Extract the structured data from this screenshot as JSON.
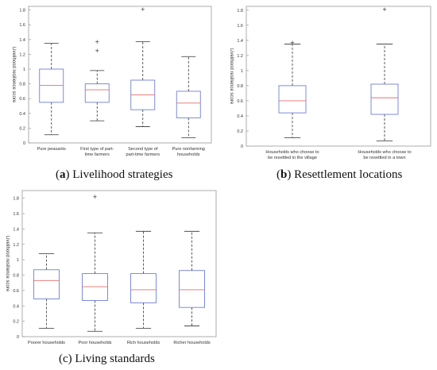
{
  "colors": {
    "box": "#6f7fd6",
    "median": "#e46f6f",
    "whisker": "#333333",
    "outlier": "#555555",
    "frame": "#999999"
  },
  "captions": [
    {
      "letter": "a",
      "text": "Livelihood strategies"
    },
    {
      "letter": "b",
      "text": "Resettlement locations"
    },
    {
      "letter": "c",
      "text": "Living standards"
    }
  ],
  "chart_data": [
    {
      "type": "box",
      "ylabel": "Livelihood resilience score",
      "ylim": [
        0,
        1.85
      ],
      "yticks": [
        "0",
        "0.2",
        "0.4",
        "0.6",
        "0.8",
        "1",
        "1.2",
        "1.4",
        "1.6",
        "1.8"
      ],
      "categories": [
        [
          "Pure peasants"
        ],
        [
          "First type of part-",
          "time farmers"
        ],
        [
          "Second  type of",
          "part-time farmers"
        ],
        [
          "Pure nonfarming",
          "households"
        ]
      ],
      "boxes": [
        {
          "min": 0.11,
          "q1": 0.55,
          "median": 0.78,
          "q3": 1.0,
          "max": 1.35,
          "outliers": []
        },
        {
          "min": 0.3,
          "q1": 0.55,
          "median": 0.72,
          "q3": 0.8,
          "max": 0.98,
          "outliers": [
            1.25,
            1.37
          ]
        },
        {
          "min": 0.22,
          "q1": 0.45,
          "median": 0.65,
          "q3": 0.85,
          "max": 1.37,
          "outliers": [
            1.81
          ]
        },
        {
          "min": 0.07,
          "q1": 0.34,
          "median": 0.54,
          "q3": 0.7,
          "max": 1.17,
          "outliers": []
        }
      ]
    },
    {
      "type": "box",
      "ylabel": "Livelihood resilience score",
      "ylim": [
        0,
        1.85
      ],
      "yticks": [
        "0",
        "0.2",
        "0.4",
        "0.6",
        "0.8",
        "1",
        "1.2",
        "1.4",
        "1.6",
        "1.8"
      ],
      "categories": [
        [
          "Households who choose to",
          "be resettled in the village"
        ],
        [
          "Households who choose to",
          "be resettled in a town"
        ]
      ],
      "boxes": [
        {
          "min": 0.11,
          "q1": 0.44,
          "median": 0.6,
          "q3": 0.8,
          "max": 1.35,
          "outliers": [
            1.37
          ]
        },
        {
          "min": 0.07,
          "q1": 0.42,
          "median": 0.64,
          "q3": 0.82,
          "max": 1.35,
          "outliers": [
            1.81
          ]
        }
      ]
    },
    {
      "type": "box",
      "ylabel": "Livelihood resilience score",
      "ylim": [
        0,
        1.9
      ],
      "yticks": [
        "0",
        "0.2",
        "0.4",
        "0.6",
        "0.8",
        "1",
        "1.2",
        "1.4",
        "1.6",
        "1.8"
      ],
      "categories": [
        [
          "Poorer households"
        ],
        [
          "Poor households"
        ],
        [
          "Rich households"
        ],
        [
          "Richer households"
        ]
      ],
      "boxes": [
        {
          "min": 0.11,
          "q1": 0.49,
          "median": 0.73,
          "q3": 0.87,
          "max": 1.08,
          "outliers": []
        },
        {
          "min": 0.07,
          "q1": 0.47,
          "median": 0.65,
          "q3": 0.82,
          "max": 1.35,
          "outliers": [
            1.82
          ]
        },
        {
          "min": 0.11,
          "q1": 0.44,
          "median": 0.61,
          "q3": 0.82,
          "max": 1.37,
          "outliers": []
        },
        {
          "min": 0.14,
          "q1": 0.38,
          "median": 0.61,
          "q3": 0.86,
          "max": 1.37,
          "outliers": []
        }
      ]
    }
  ]
}
